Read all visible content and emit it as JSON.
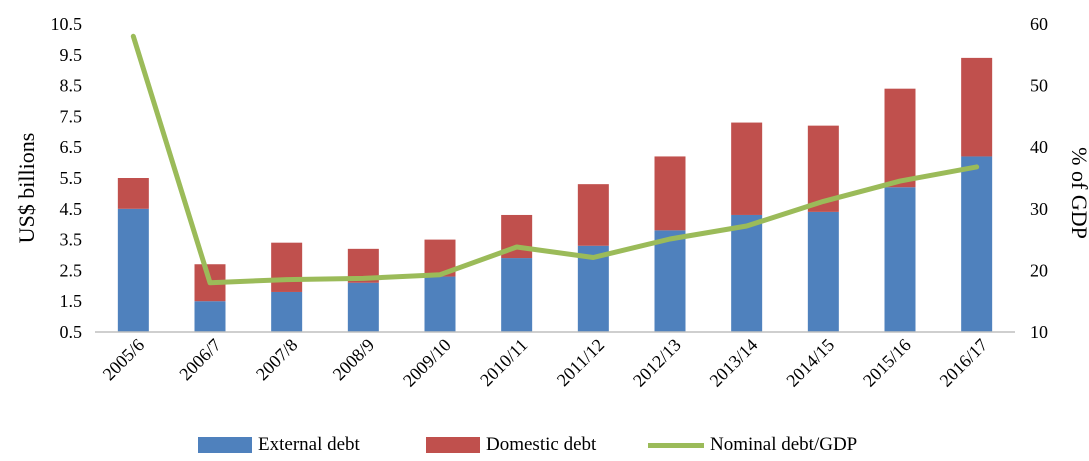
{
  "chart_data": {
    "type": "bar",
    "stacked": true,
    "categories": [
      "2005/6",
      "2006/7",
      "2007/8",
      "2008/9",
      "2009/10",
      "2010/11",
      "2011/12",
      "2012/13",
      "2013/14",
      "2014/15",
      "2015/16",
      "2016/17"
    ],
    "series": [
      {
        "name": "External debt",
        "kind": "bar",
        "axis": "left",
        "color": "#4f81bd",
        "values": [
          4.5,
          1.5,
          1.8,
          2.1,
          2.3,
          2.9,
          3.3,
          3.8,
          4.3,
          4.4,
          5.2,
          6.2
        ]
      },
      {
        "name": "Domestic debt",
        "kind": "bar",
        "axis": "left",
        "color": "#c0504d",
        "values": [
          1.0,
          1.2,
          1.6,
          1.1,
          1.2,
          1.4,
          2.0,
          2.4,
          3.0,
          2.8,
          3.2,
          3.2
        ]
      },
      {
        "name": "Nominal debt/GDP",
        "kind": "line",
        "axis": "right",
        "color": "#9bbb59",
        "values": [
          58,
          18,
          18.5,
          18.7,
          19.3,
          23.8,
          22.1,
          25.1,
          27.2,
          31.2,
          34.5,
          36.8
        ]
      }
    ],
    "ylabel": "US$ billions",
    "y2label": "% of GDP",
    "ylim": [
      0.5,
      10.5
    ],
    "y2lim": [
      10,
      60
    ],
    "yticks": [
      "10.5",
      "9.5",
      "8.5",
      "7.5",
      "6.5",
      "5.5",
      "4.5",
      "3.5",
      "2.5",
      "1.5",
      "0.5"
    ],
    "y2ticks": [
      "60",
      "50",
      "40",
      "30",
      "20",
      "10"
    ],
    "legend_position": "bottom",
    "grid": false
  }
}
